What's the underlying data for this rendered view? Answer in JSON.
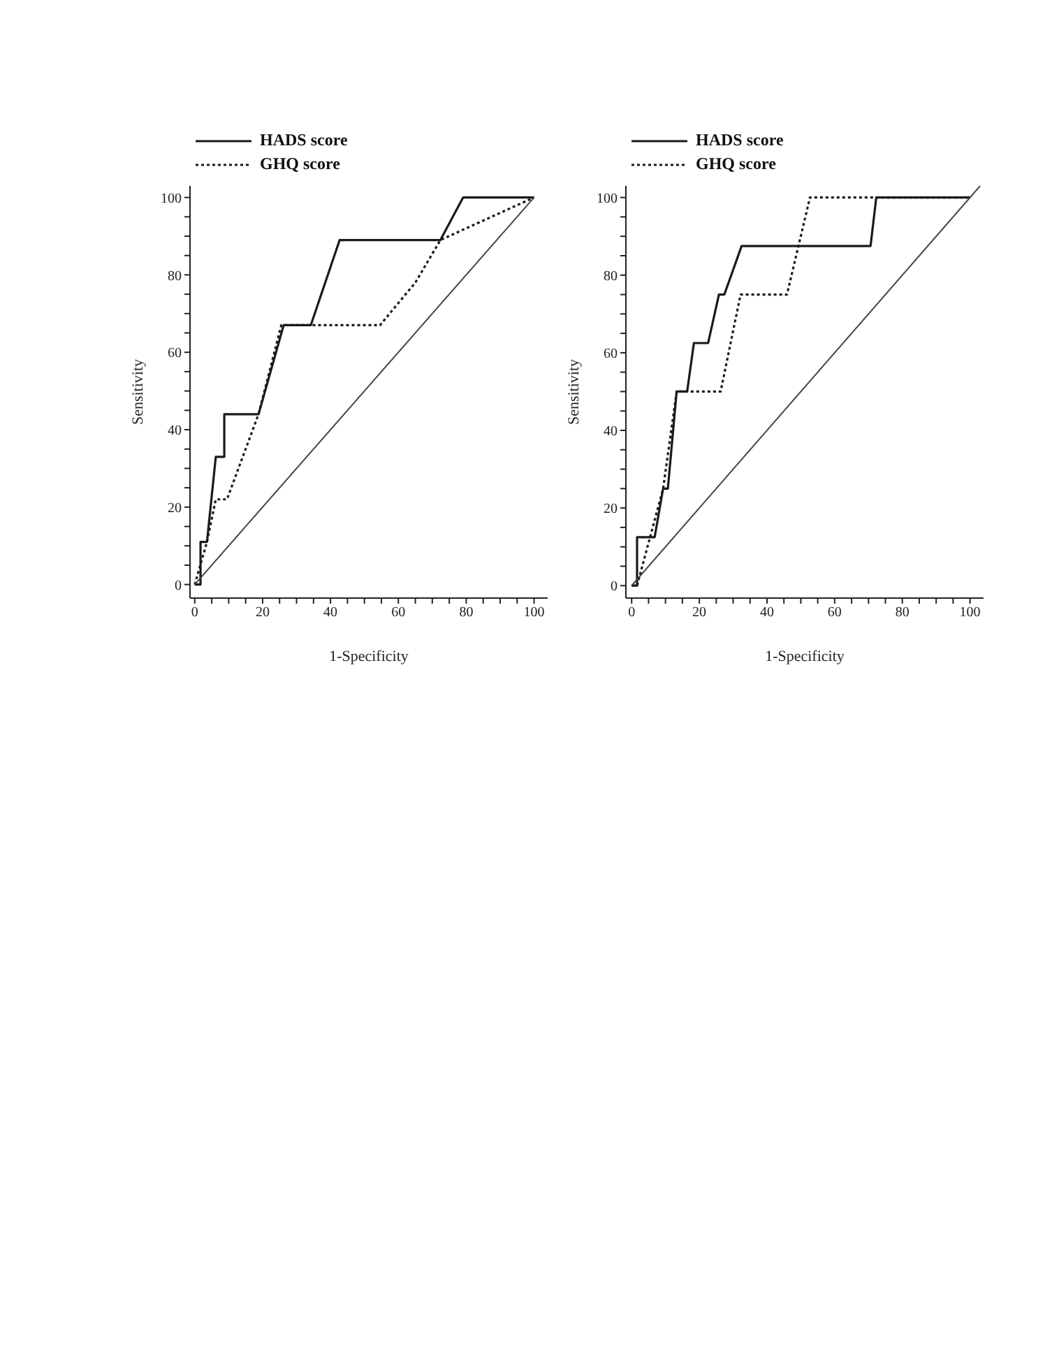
{
  "chart_data": [
    {
      "type": "line",
      "xlabel": "1-Specificity",
      "ylabel": "Sensitivity",
      "xlim": [
        -1.4,
        104
      ],
      "ylim": [
        -3.5,
        103
      ],
      "xticks": [
        0,
        {
          "value": 5,
          "label": null
        },
        {
          "value": 10,
          "label": null
        },
        {
          "value": 15,
          "label": null
        },
        20,
        {
          "value": 25,
          "label": null
        },
        {
          "value": 30,
          "label": null
        },
        {
          "value": 35,
          "label": null
        },
        40,
        {
          "value": 45,
          "label": null
        },
        {
          "value": 50,
          "label": null
        },
        {
          "value": 55,
          "label": null
        },
        60,
        {
          "value": 65,
          "label": null
        },
        {
          "value": 70,
          "label": null
        },
        {
          "value": 75,
          "label": null
        },
        80,
        {
          "value": 85,
          "label": null
        },
        {
          "value": 90,
          "label": null
        },
        {
          "value": 95,
          "label": null
        },
        100
      ],
      "yticks": [
        0,
        {
          "value": 5,
          "label": null
        },
        {
          "value": 10,
          "label": null
        },
        {
          "value": 15,
          "label": null
        },
        20,
        {
          "value": 25,
          "label": null
        },
        {
          "value": 30,
          "label": null
        },
        {
          "value": 35,
          "label": null
        },
        40,
        {
          "value": 45,
          "label": null
        },
        {
          "value": 50,
          "label": null
        },
        {
          "value": 55,
          "label": null
        },
        60,
        {
          "value": 65,
          "label": null
        },
        {
          "value": 70,
          "label": null
        },
        {
          "value": 75,
          "label": null
        },
        80,
        {
          "value": 85,
          "label": null
        },
        {
          "value": 90,
          "label": null
        },
        {
          "value": 95,
          "label": null
        },
        100
      ],
      "legend": "top left",
      "marker": "none",
      "series": [
        {
          "name": "HADS score",
          "color": "#1a1a1a",
          "line_style": "solid",
          "x": [
            0,
            1.7,
            1.7,
            3.6,
            6.2,
            8.7,
            8.7,
            18.8,
            26.2,
            34.2,
            42.7,
            72.4,
            79.1,
            100
          ],
          "values": [
            0,
            0,
            11,
            11,
            33,
            33,
            44,
            44,
            67,
            67,
            89,
            89,
            100,
            100
          ]
        },
        {
          "name": "GHQ score",
          "color": "#1a1a1a",
          "line_style": "dotted",
          "x": [
            0,
            3.6,
            6.2,
            9.5,
            18.8,
            25.5,
            54.6,
            65,
            72.4,
            100
          ],
          "values": [
            0,
            11,
            22,
            22,
            44,
            67,
            67,
            78,
            89,
            100
          ]
        },
        {
          "color": "#444444",
          "line_style": "solid",
          "x": [
            0,
            100
          ],
          "values": [
            0,
            100
          ]
        }
      ]
    },
    {
      "type": "line",
      "xlabel": "1-Specificity",
      "ylabel": "Sensitivity",
      "xlim": [
        -1.7,
        104
      ],
      "ylim": [
        -3.2,
        103
      ],
      "xticks": [
        0,
        {
          "value": 5,
          "label": null
        },
        {
          "value": 10,
          "label": null
        },
        {
          "value": 15,
          "label": null
        },
        20,
        {
          "value": 25,
          "label": null
        },
        {
          "value": 30,
          "label": null
        },
        {
          "value": 35,
          "label": null
        },
        40,
        {
          "value": 45,
          "label": null
        },
        {
          "value": 50,
          "label": null
        },
        {
          "value": 55,
          "label": null
        },
        60,
        {
          "value": 65,
          "label": null
        },
        {
          "value": 70,
          "label": null
        },
        {
          "value": 75,
          "label": null
        },
        80,
        {
          "value": 85,
          "label": null
        },
        {
          "value": 90,
          "label": null
        },
        {
          "value": 95,
          "label": null
        },
        100
      ],
      "yticks": [
        0,
        {
          "value": 5,
          "label": null
        },
        {
          "value": 10,
          "label": null
        },
        {
          "value": 15,
          "label": null
        },
        20,
        {
          "value": 25,
          "label": null
        },
        {
          "value": 30,
          "label": null
        },
        {
          "value": 35,
          "label": null
        },
        40,
        {
          "value": 45,
          "label": null
        },
        {
          "value": 50,
          "label": null
        },
        {
          "value": 55,
          "label": null
        },
        60,
        {
          "value": 65,
          "label": null
        },
        {
          "value": 70,
          "label": null
        },
        {
          "value": 75,
          "label": null
        },
        80,
        {
          "value": 85,
          "label": null
        },
        {
          "value": 90,
          "label": null
        },
        {
          "value": 95,
          "label": null
        },
        100
      ],
      "legend": "top left",
      "marker": "none",
      "series": [
        {
          "name": "HADS score",
          "color": "#1a1a1a",
          "line_style": "solid",
          "x": [
            0,
            1.6,
            1.6,
            6.8,
            9.3,
            10.7,
            13.3,
            16.4,
            18.4,
            22.6,
            25.8,
            27.4,
            32.5,
            70.6,
            72.3,
            100
          ],
          "values": [
            0,
            0,
            12.5,
            12.5,
            25,
            25,
            50,
            50,
            62.5,
            62.5,
            75,
            75,
            87.5,
            87.5,
            100,
            100
          ]
        },
        {
          "name": "GHQ score",
          "color": "#1a1a1a",
          "line_style": "dotted",
          "x": [
            0,
            1.6,
            9.3,
            13.3,
            26.3,
            32.2,
            45.9,
            52.7,
            100
          ],
          "values": [
            0,
            0,
            25,
            50,
            50,
            75,
            75,
            100,
            100
          ]
        },
        {
          "color": "#444444",
          "line_style": "solid",
          "x": [
            0,
            103
          ],
          "values": [
            0,
            103
          ]
        }
      ]
    }
  ]
}
